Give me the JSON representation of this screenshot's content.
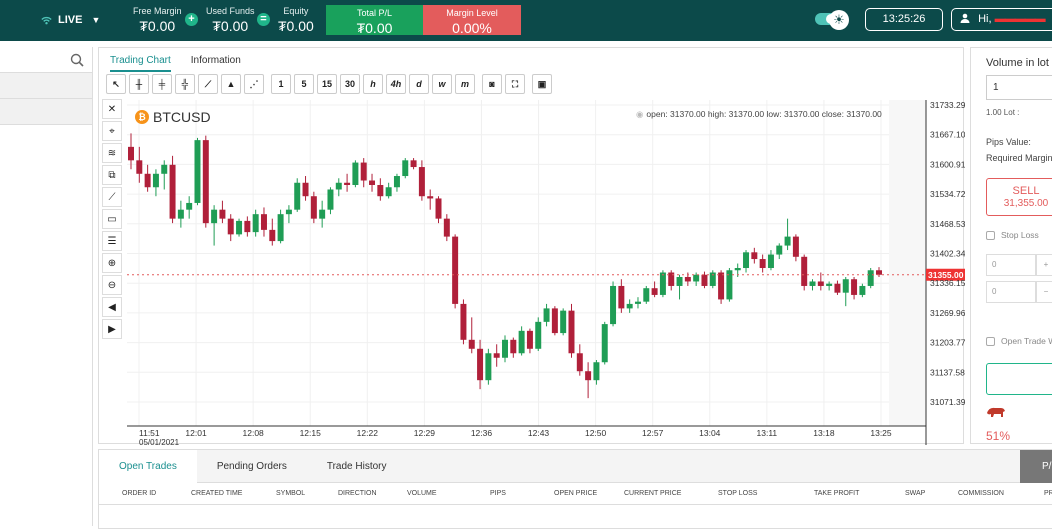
{
  "topbar": {
    "mode": "LIVE",
    "free_margin": {
      "label": "Free Margin",
      "value": "₮0.00"
    },
    "used_funds": {
      "label": "Used Funds",
      "value": "₮0.00"
    },
    "equity": {
      "label": "Equity",
      "value": "₮0.00"
    },
    "total_pl": {
      "label": "Total P/L",
      "value": "₮0.00"
    },
    "margin_level": {
      "label": "Margin Level",
      "value": "0.00%"
    },
    "op_plus": "+",
    "op_equals": "=",
    "clock": "13:25:26",
    "greeting": "Hi,",
    "username_redacted": "▬▬▬▬▬",
    "colors": {
      "bar": "#0c4a4a",
      "profit": "#19a15c",
      "loss": "#e35c5c"
    }
  },
  "chart_tabs": [
    "Trading Chart",
    "Information"
  ],
  "toolbar": {
    "intervals": [
      "1",
      "5",
      "15",
      "30",
      "h",
      "4h",
      "d",
      "w",
      "m"
    ],
    "icons": [
      "cursor-icon",
      "bar-chart-icon",
      "candle-chart-icon",
      "hollow-candle-icon",
      "line-chart-icon",
      "area-chart-icon",
      "dot-chart-icon",
      "camera-icon",
      "fullscreen-icon",
      "watermark-icon"
    ]
  },
  "side_tools": [
    "close-icon",
    "cross-cursor-icon",
    "fib-icon",
    "copy-icon",
    "trendline-icon",
    "rectangle-icon",
    "menu-lines-icon",
    "zoom-in-icon",
    "zoom-out-icon",
    "scroll-left-icon",
    "scroll-right-icon"
  ],
  "symbol": {
    "name": "BTCUSD",
    "coin_glyph": "₿"
  },
  "ohlc_text": "open: 31370.00 high: 31370.00 low: 31370.00 close: 31370.00",
  "price_axis": {
    "ticks": [
      "31733.29",
      "31667.10",
      "31600.91",
      "31534.72",
      "31468.53",
      "31402.34",
      "31336.15",
      "31269.96",
      "31203.77",
      "31137.58",
      "31071.39"
    ],
    "current_price": "31355.00"
  },
  "time_axis": {
    "ticks": [
      "11:51",
      "12:01",
      "12:08",
      "12:15",
      "12:22",
      "12:29",
      "12:36",
      "12:43",
      "12:50",
      "12:57",
      "13:04",
      "13:11",
      "13:18",
      "13:25"
    ],
    "date": "05/01/2021"
  },
  "chart_data": {
    "type": "candlestick",
    "symbol": "BTCUSD",
    "y_axis_ticks": [
      31733.29,
      31667.1,
      31600.91,
      31534.72,
      31468.53,
      31402.34,
      31336.15,
      31269.96,
      31203.77,
      31137.58,
      31071.39
    ],
    "current_price": 31355.0,
    "colors": {
      "up": "#1f9d55",
      "down": "#b0203a"
    },
    "candles": [
      {
        "o": 31640,
        "h": 31670,
        "l": 31590,
        "c": 31610
      },
      {
        "o": 31610,
        "h": 31640,
        "l": 31560,
        "c": 31580
      },
      {
        "o": 31580,
        "h": 31600,
        "l": 31540,
        "c": 31550
      },
      {
        "o": 31550,
        "h": 31590,
        "l": 31530,
        "c": 31580
      },
      {
        "o": 31580,
        "h": 31610,
        "l": 31545,
        "c": 31600
      },
      {
        "o": 31600,
        "h": 31620,
        "l": 31470,
        "c": 31480
      },
      {
        "o": 31480,
        "h": 31520,
        "l": 31460,
        "c": 31500
      },
      {
        "o": 31500,
        "h": 31530,
        "l": 31480,
        "c": 31515
      },
      {
        "o": 31515,
        "h": 31660,
        "l": 31510,
        "c": 31655
      },
      {
        "o": 31655,
        "h": 31665,
        "l": 31460,
        "c": 31470
      },
      {
        "o": 31470,
        "h": 31510,
        "l": 31420,
        "c": 31500
      },
      {
        "o": 31500,
        "h": 31520,
        "l": 31470,
        "c": 31480
      },
      {
        "o": 31480,
        "h": 31490,
        "l": 31430,
        "c": 31445
      },
      {
        "o": 31445,
        "h": 31480,
        "l": 31440,
        "c": 31475
      },
      {
        "o": 31475,
        "h": 31485,
        "l": 31440,
        "c": 31450
      },
      {
        "o": 31450,
        "h": 31500,
        "l": 31440,
        "c": 31490
      },
      {
        "o": 31490,
        "h": 31505,
        "l": 31440,
        "c": 31455
      },
      {
        "o": 31455,
        "h": 31480,
        "l": 31420,
        "c": 31430
      },
      {
        "o": 31430,
        "h": 31500,
        "l": 31425,
        "c": 31490
      },
      {
        "o": 31490,
        "h": 31510,
        "l": 31470,
        "c": 31500
      },
      {
        "o": 31500,
        "h": 31570,
        "l": 31495,
        "c": 31560
      },
      {
        "o": 31560,
        "h": 31575,
        "l": 31520,
        "c": 31530
      },
      {
        "o": 31530,
        "h": 31540,
        "l": 31470,
        "c": 31480
      },
      {
        "o": 31480,
        "h": 31520,
        "l": 31460,
        "c": 31500
      },
      {
        "o": 31500,
        "h": 31550,
        "l": 31490,
        "c": 31545
      },
      {
        "o": 31545,
        "h": 31570,
        "l": 31530,
        "c": 31560
      },
      {
        "o": 31560,
        "h": 31580,
        "l": 31540,
        "c": 31555
      },
      {
        "o": 31555,
        "h": 31610,
        "l": 31550,
        "c": 31605
      },
      {
        "o": 31605,
        "h": 31615,
        "l": 31550,
        "c": 31565
      },
      {
        "o": 31565,
        "h": 31580,
        "l": 31540,
        "c": 31555
      },
      {
        "o": 31555,
        "h": 31570,
        "l": 31520,
        "c": 31530
      },
      {
        "o": 31530,
        "h": 31560,
        "l": 31525,
        "c": 31550
      },
      {
        "o": 31550,
        "h": 31580,
        "l": 31540,
        "c": 31575
      },
      {
        "o": 31575,
        "h": 31615,
        "l": 31570,
        "c": 31610
      },
      {
        "o": 31610,
        "h": 31615,
        "l": 31590,
        "c": 31595
      },
      {
        "o": 31595,
        "h": 31610,
        "l": 31520,
        "c": 31530
      },
      {
        "o": 31530,
        "h": 31545,
        "l": 31500,
        "c": 31525
      },
      {
        "o": 31525,
        "h": 31530,
        "l": 31470,
        "c": 31480
      },
      {
        "o": 31480,
        "h": 31490,
        "l": 31430,
        "c": 31440
      },
      {
        "o": 31440,
        "h": 31445,
        "l": 31280,
        "c": 31290
      },
      {
        "o": 31290,
        "h": 31300,
        "l": 31200,
        "c": 31210
      },
      {
        "o": 31210,
        "h": 31260,
        "l": 31180,
        "c": 31190
      },
      {
        "o": 31190,
        "h": 31210,
        "l": 31100,
        "c": 31120
      },
      {
        "o": 31120,
        "h": 31190,
        "l": 31110,
        "c": 31180
      },
      {
        "o": 31180,
        "h": 31200,
        "l": 31150,
        "c": 31170
      },
      {
        "o": 31170,
        "h": 31220,
        "l": 31160,
        "c": 31210
      },
      {
        "o": 31210,
        "h": 31215,
        "l": 31170,
        "c": 31180
      },
      {
        "o": 31180,
        "h": 31240,
        "l": 31175,
        "c": 31230
      },
      {
        "o": 31230,
        "h": 31235,
        "l": 31180,
        "c": 31190
      },
      {
        "o": 31190,
        "h": 31260,
        "l": 31185,
        "c": 31250
      },
      {
        "o": 31250,
        "h": 31290,
        "l": 31240,
        "c": 31280
      },
      {
        "o": 31280,
        "h": 31285,
        "l": 31220,
        "c": 31225
      },
      {
        "o": 31225,
        "h": 31280,
        "l": 31220,
        "c": 31275
      },
      {
        "o": 31275,
        "h": 31290,
        "l": 31170,
        "c": 31180
      },
      {
        "o": 31180,
        "h": 31200,
        "l": 31130,
        "c": 31140
      },
      {
        "o": 31140,
        "h": 31160,
        "l": 31080,
        "c": 31120
      },
      {
        "o": 31120,
        "h": 31165,
        "l": 31110,
        "c": 31160
      },
      {
        "o": 31160,
        "h": 31250,
        "l": 31155,
        "c": 31245
      },
      {
        "o": 31245,
        "h": 31340,
        "l": 31240,
        "c": 31330
      },
      {
        "o": 31330,
        "h": 31345,
        "l": 31270,
        "c": 31280
      },
      {
        "o": 31280,
        "h": 31300,
        "l": 31270,
        "c": 31290
      },
      {
        "o": 31290,
        "h": 31305,
        "l": 31280,
        "c": 31295
      },
      {
        "o": 31295,
        "h": 31330,
        "l": 31290,
        "c": 31325
      },
      {
        "o": 31325,
        "h": 31340,
        "l": 31305,
        "c": 31310
      },
      {
        "o": 31310,
        "h": 31365,
        "l": 31305,
        "c": 31360
      },
      {
        "o": 31360,
        "h": 31365,
        "l": 31320,
        "c": 31330
      },
      {
        "o": 31330,
        "h": 31355,
        "l": 31300,
        "c": 31350
      },
      {
        "o": 31350,
        "h": 31360,
        "l": 31330,
        "c": 31340
      },
      {
        "o": 31340,
        "h": 31360,
        "l": 31330,
        "c": 31355
      },
      {
        "o": 31355,
        "h": 31362,
        "l": 31325,
        "c": 31330
      },
      {
        "o": 31330,
        "h": 31365,
        "l": 31325,
        "c": 31360
      },
      {
        "o": 31360,
        "h": 31365,
        "l": 31290,
        "c": 31300
      },
      {
        "o": 31300,
        "h": 31370,
        "l": 31295,
        "c": 31365
      },
      {
        "o": 31365,
        "h": 31380,
        "l": 31350,
        "c": 31370
      },
      {
        "o": 31370,
        "h": 31410,
        "l": 31360,
        "c": 31405
      },
      {
        "o": 31405,
        "h": 31415,
        "l": 31380,
        "c": 31390
      },
      {
        "o": 31390,
        "h": 31400,
        "l": 31360,
        "c": 31370
      },
      {
        "o": 31370,
        "h": 31410,
        "l": 31365,
        "c": 31400
      },
      {
        "o": 31400,
        "h": 31425,
        "l": 31390,
        "c": 31420
      },
      {
        "o": 31420,
        "h": 31480,
        "l": 31410,
        "c": 31440
      },
      {
        "o": 31440,
        "h": 31445,
        "l": 31385,
        "c": 31395
      },
      {
        "o": 31395,
        "h": 31400,
        "l": 31320,
        "c": 31330
      },
      {
        "o": 31330,
        "h": 31345,
        "l": 31320,
        "c": 31340
      },
      {
        "o": 31340,
        "h": 31360,
        "l": 31320,
        "c": 31330
      },
      {
        "o": 31330,
        "h": 31340,
        "l": 31320,
        "c": 31335
      },
      {
        "o": 31335,
        "h": 31342,
        "l": 31310,
        "c": 31315
      },
      {
        "o": 31315,
        "h": 31350,
        "l": 31285,
        "c": 31345
      },
      {
        "o": 31345,
        "h": 31350,
        "l": 31300,
        "c": 31310
      },
      {
        "o": 31310,
        "h": 31335,
        "l": 31305,
        "c": 31330
      },
      {
        "o": 31330,
        "h": 31370,
        "l": 31325,
        "c": 31365
      },
      {
        "o": 31365,
        "h": 31372,
        "l": 31350,
        "c": 31355
      }
    ]
  },
  "order_panel": {
    "title": "Volume in lot",
    "volume": "1",
    "lot_info": "1.00 Lot :",
    "pips_value": "Pips Value:",
    "required_margin": "Required Margin:",
    "sell_label": "SELL",
    "sell_price": "31,355.00",
    "stop_loss": "Stop Loss",
    "spin_value_1": "0",
    "spin_value_2": "0",
    "open_trade": "Open Trade W",
    "sentiment": "51%"
  },
  "bottom": {
    "tabs": [
      "Open Trades",
      "Pending Orders",
      "Trade History"
    ],
    "right_button": "P/",
    "columns": [
      "ORDER ID",
      "CREATED TIME",
      "SYMBOL",
      "DIRECTION",
      "VOLUME",
      "PIPS",
      "OPEN PRICE",
      "CURRENT PRICE",
      "STOP LOSS",
      "TAKE PROFIT",
      "SWAP",
      "COMMISSION",
      "PR"
    ]
  }
}
